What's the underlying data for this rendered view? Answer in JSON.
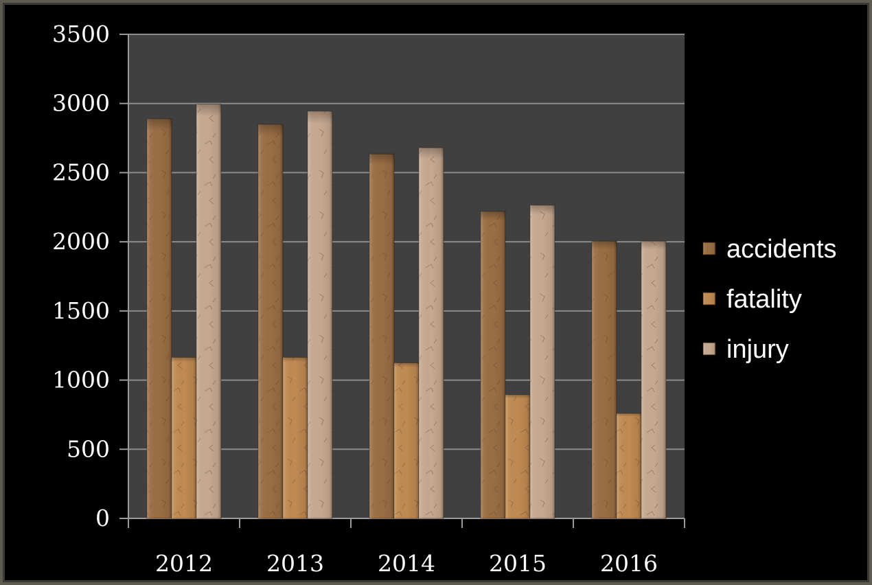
{
  "chart_data": {
    "type": "bar",
    "categories": [
      "2012",
      "2013",
      "2014",
      "2015",
      "2016"
    ],
    "series": [
      {
        "name": "accidents",
        "values": [
          2890,
          2850,
          2635,
          2220,
          2005
        ],
        "color": "#9a6e44"
      },
      {
        "name": "fatality",
        "values": [
          1165,
          1165,
          1125,
          895,
          760
        ],
        "color": "#c08a52"
      },
      {
        "name": "injury",
        "values": [
          2995,
          2945,
          2680,
          2265,
          2005
        ],
        "color": "#c6a890"
      }
    ],
    "yticks": [
      "0",
      "500",
      "1000",
      "1500",
      "2000",
      "2500",
      "3000",
      "3500"
    ],
    "ylim": [
      0,
      3500
    ],
    "title": "",
    "xlabel": "",
    "ylabel": "",
    "grid": true,
    "legend_position": "right",
    "plot_background": "#404040",
    "page_background": "#000000"
  }
}
